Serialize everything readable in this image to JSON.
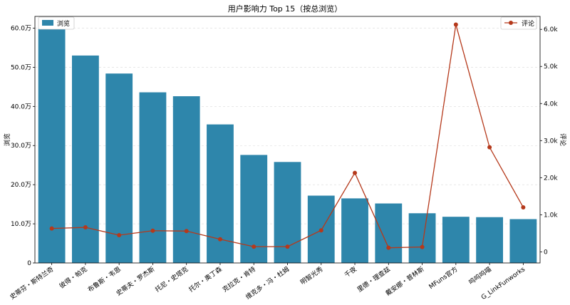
{
  "chart_data": {
    "type": "bar",
    "title": "用户影响力 Top 15（按总浏览）",
    "categories": [
      "史蒂芬・斯特兰奇",
      "彼得・帕克",
      "布鲁斯・韦恩",
      "史蒂夫・罗杰斯",
      "托尼・史塔克",
      "托尔・奥丁森",
      "克拉克・肯特",
      "维克多・冯・杜姆",
      "明智光秀",
      "千夜",
      "里德・理查兹",
      "戴安娜・普林斯",
      "MFuns官方",
      "呜呜呜喵",
      "G_LinkFunworks"
    ],
    "series": [
      {
        "name": "浏览",
        "type": "bar",
        "axis": "left",
        "color": "#2e86ab",
        "values": [
          598000,
          530000,
          484000,
          436000,
          426000,
          354000,
          276000,
          258000,
          172000,
          165000,
          152000,
          127000,
          118000,
          117000,
          112000
        ]
      },
      {
        "name": "评论",
        "type": "line",
        "axis": "right",
        "color": "#b5391b",
        "values": [
          630,
          660,
          450,
          570,
          560,
          340,
          140,
          140,
          580,
          2130,
          110,
          130,
          6130,
          2820,
          1200
        ]
      }
    ],
    "ylabel_left": "浏览",
    "ylabel_right": "评论",
    "ylim_left": [
      0,
      630000
    ],
    "ylim_right": [
      -300,
      6350
    ],
    "yticks_left": [
      0,
      100000,
      200000,
      300000,
      400000,
      500000,
      600000
    ],
    "yticks_left_labels": [
      "0",
      "10.0万",
      "20.0万",
      "30.0万",
      "40.0万",
      "50.0万",
      "60.0万"
    ],
    "yticks_right": [
      0,
      1000,
      2000,
      3000,
      4000,
      5000,
      6000
    ],
    "yticks_right_labels": [
      "0",
      "1.0k",
      "2.0k",
      "3.0k",
      "4.0k",
      "5.0k",
      "6.0k"
    ],
    "grid": true,
    "legend_left": "top-left",
    "legend_right": "top-right"
  }
}
